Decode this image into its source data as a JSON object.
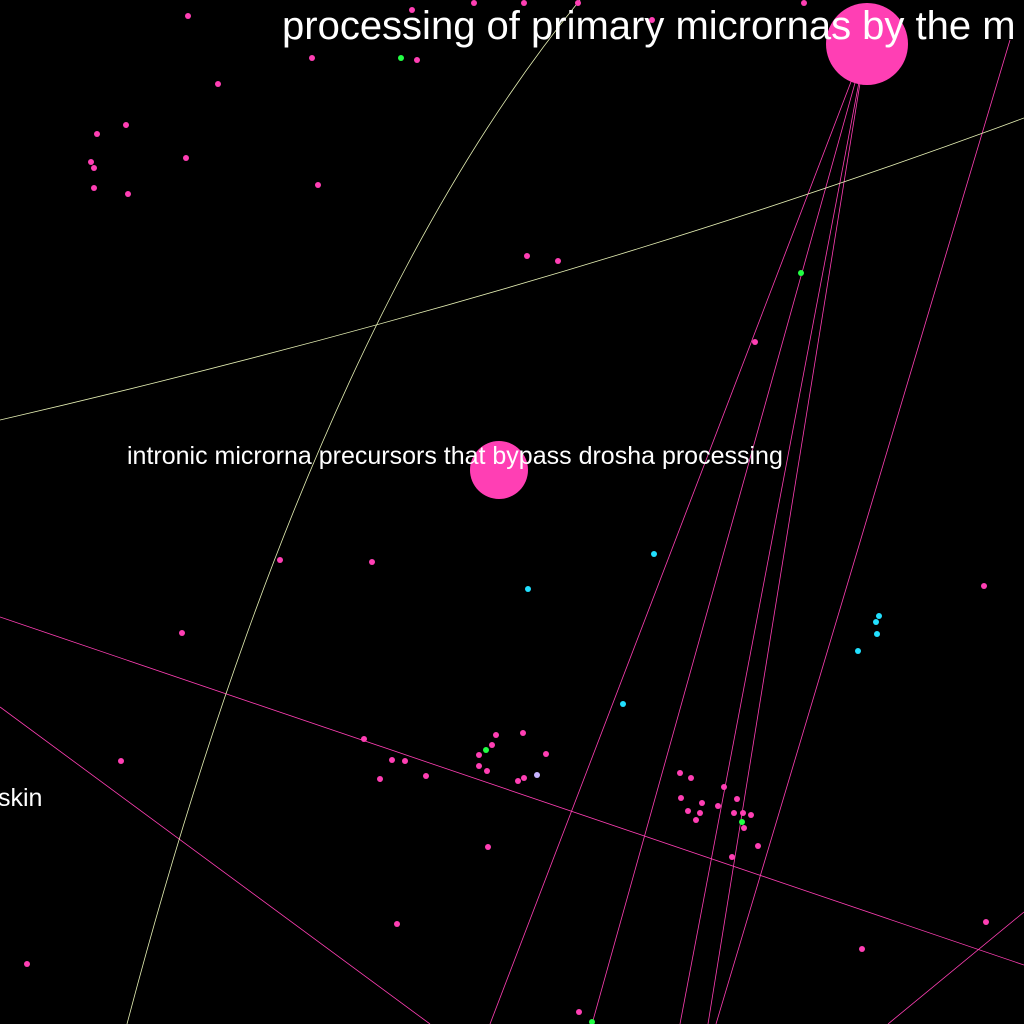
{
  "labels": {
    "top": "processing of primary micrornas by the m",
    "mid": "intronic microrna precursors that bypass drosha processing",
    "left": "skin"
  },
  "colors": {
    "background": "#000000",
    "node_pink": "#ff3fb4",
    "node_green": "#22ff44",
    "node_cyan": "#22e0ff",
    "node_lavender": "#c8b4ff",
    "edge_pink": "#ff3fb4",
    "edge_pale": "#e6f0b4",
    "label_text": "#ffffff"
  }
}
